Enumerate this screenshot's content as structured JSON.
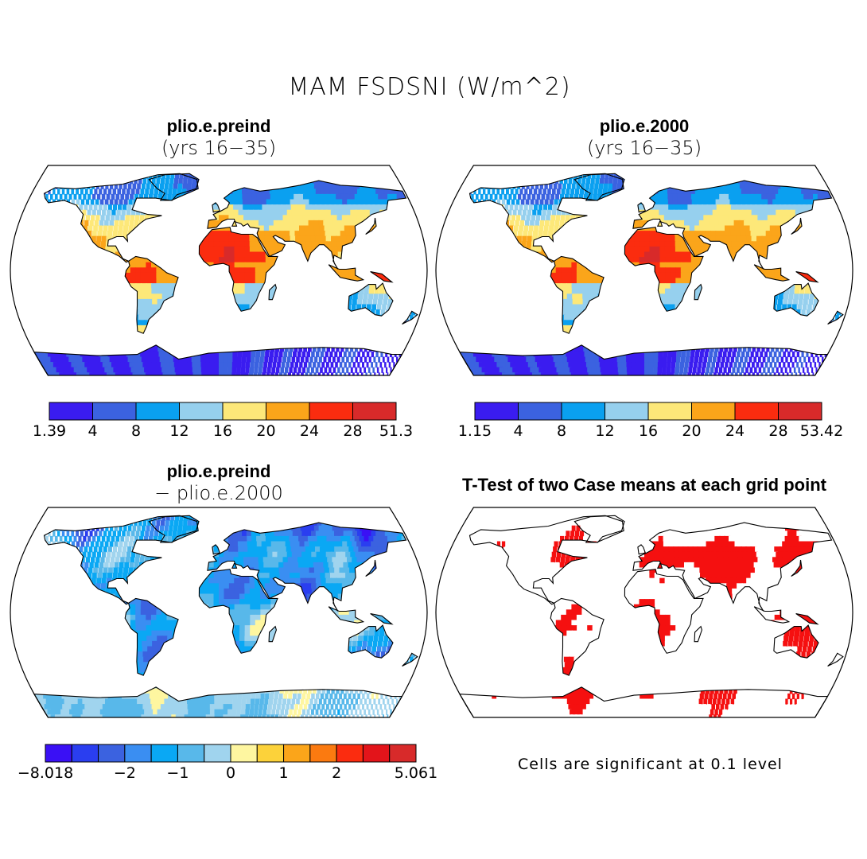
{
  "title": "MAM FSDSNI (W/m^2)",
  "panels": {
    "top_left": {
      "title": "plio.e.preind",
      "subtitle": "(yrs 16−35)"
    },
    "top_right": {
      "title": "plio.e.2000",
      "subtitle": "(yrs 16−35)"
    },
    "bottom_left": {
      "title": "plio.e.preind",
      "subtitle": "− plio.e.2000"
    },
    "bottom_right": {
      "title": "T-Test of two Case means at each grid point"
    }
  },
  "colorbars": {
    "top_left": {
      "colors": [
        "#3a1cf0",
        "#3b62e0",
        "#0aa0f0",
        "#96d0ee",
        "#fde879",
        "#fba51a",
        "#fb2c0f",
        "#d82a2a"
      ],
      "labels": [
        "1.39",
        "4",
        "8",
        "12",
        "16",
        "20",
        "24",
        "28",
        "51.3"
      ]
    },
    "top_right": {
      "colors": [
        "#3a1cf0",
        "#3b62e0",
        "#0aa0f0",
        "#96d0ee",
        "#fde879",
        "#fba51a",
        "#fb2c0f",
        "#d82a2a"
      ],
      "labels": [
        "1.15",
        "4",
        "8",
        "12",
        "16",
        "20",
        "24",
        "28",
        "53.42"
      ]
    },
    "bottom_left": {
      "colors": [
        "#3a10f5",
        "#2a3ef0",
        "#3b62e0",
        "#3a8ef2",
        "#0aa8f4",
        "#58b8ea",
        "#a0d4ee",
        "#fef6a0",
        "#fcd23a",
        "#fba51a",
        "#fb7a10",
        "#fb2c0f",
        "#e3141a",
        "#d82a2a"
      ],
      "labels": [
        "−8.018",
        "−2",
        "−1",
        "0",
        "1",
        "2",
        "5.061"
      ]
    }
  },
  "significance_note": "Cells are significant at 0.1 level"
}
